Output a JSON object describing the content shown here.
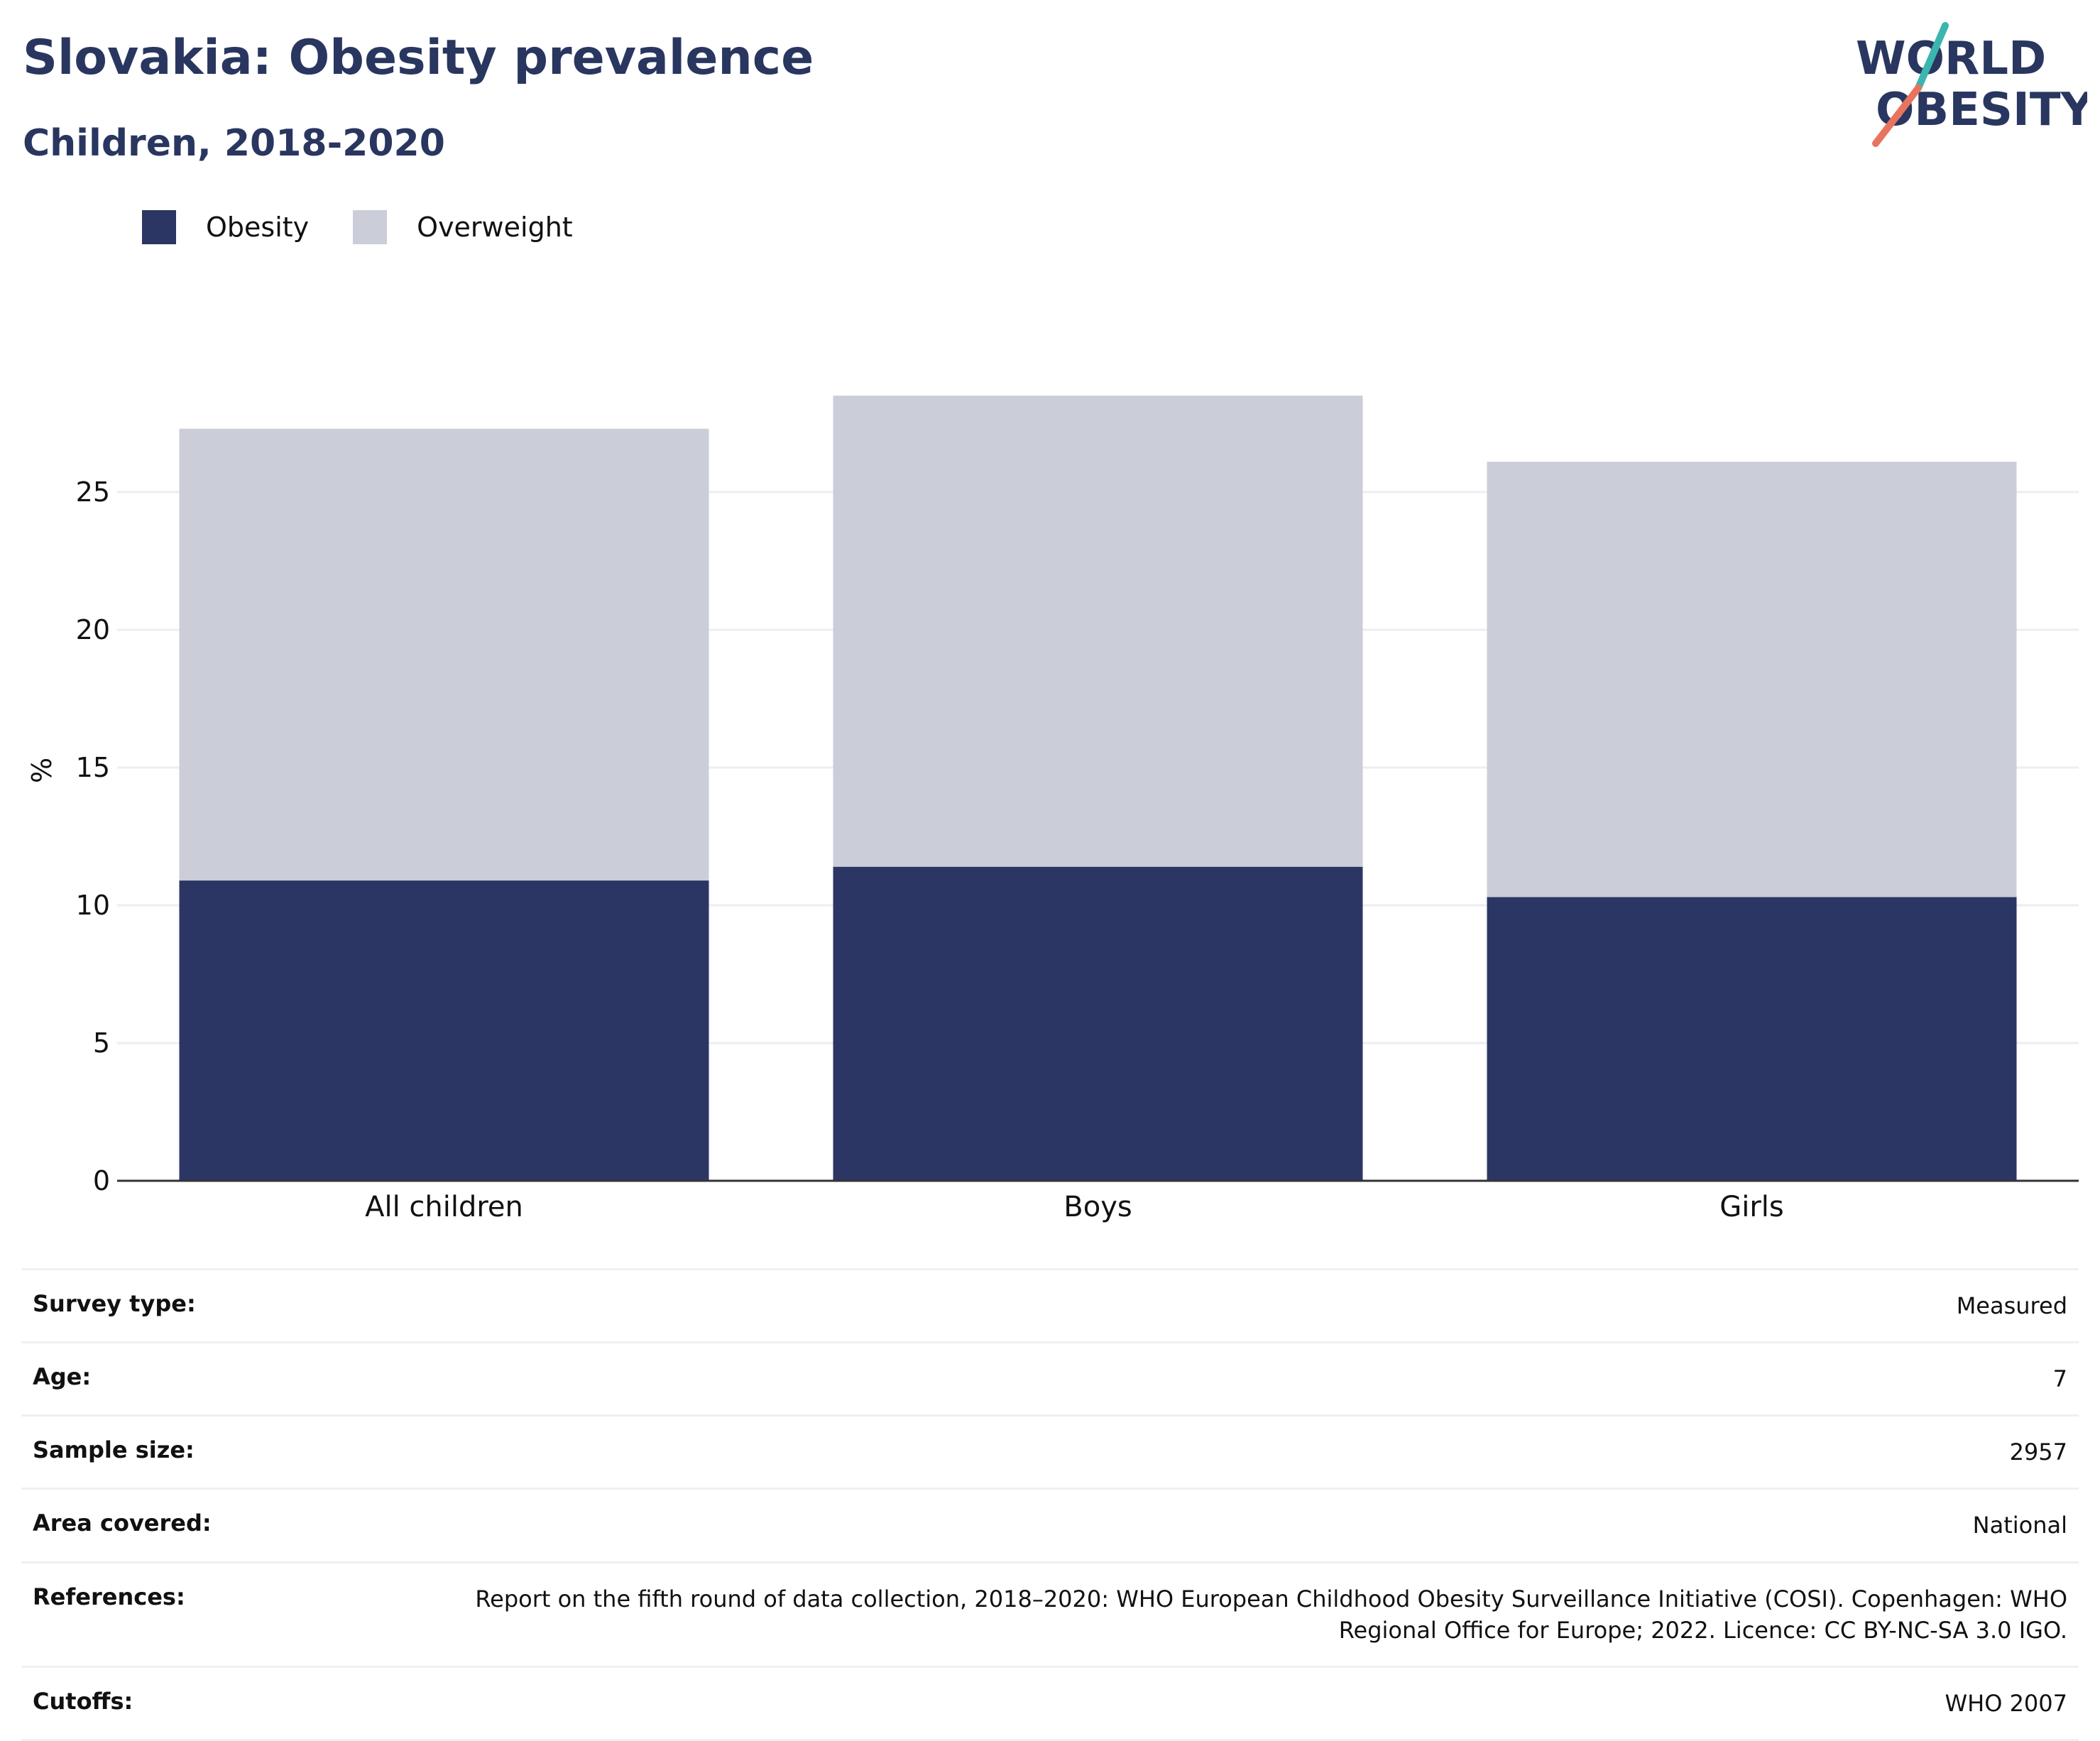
{
  "header": {
    "title": "Slovakia: Obesity prevalence",
    "subtitle": "Children, 2018-2020"
  },
  "logo": {
    "line1": "WORLD",
    "line2": "OBESITY",
    "icon": "world-obesity-logo"
  },
  "colors": {
    "obesity": "#2b3664",
    "overweight": "#cbcdd8",
    "text": "#29365f",
    "grid": "#eceef2"
  },
  "chart_data": {
    "type": "bar",
    "stacked": true,
    "categories": [
      "All children",
      "Boys",
      "Girls"
    ],
    "series": [
      {
        "name": "Obesity",
        "values": [
          10.9,
          11.4,
          10.3
        ]
      },
      {
        "name": "Overweight",
        "values": [
          16.4,
          17.1,
          15.8
        ]
      }
    ],
    "xlabel": "",
    "ylabel": "%",
    "ylim": [
      0,
      30
    ],
    "yticks": [
      0,
      5,
      10,
      15,
      20,
      25
    ],
    "grid": true,
    "legend_position": "top-left"
  },
  "info": [
    {
      "label": "Survey type:",
      "value": "Measured"
    },
    {
      "label": "Age:",
      "value": "7"
    },
    {
      "label": "Sample size:",
      "value": "2957"
    },
    {
      "label": "Area covered:",
      "value": "National"
    },
    {
      "label": "References:",
      "value": "Report on the fifth round of data collection, 2018–2020: WHO European Childhood Obesity Surveillance Initiative (COSI). Copenhagen: WHO Regional Office for Europe; 2022. Licence: CC BY-NC-SA 3.0 IGO."
    },
    {
      "label": "Cutoffs:",
      "value": "WHO 2007"
    }
  ]
}
